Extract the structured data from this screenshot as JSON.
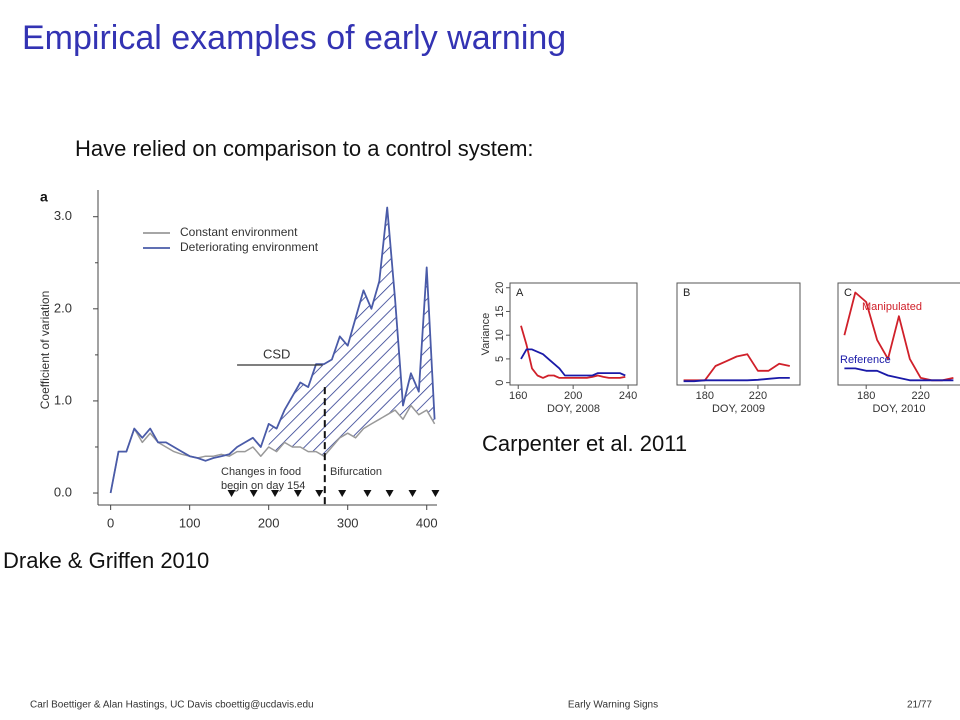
{
  "title": "Empirical examples of early warning",
  "body": "Have relied on comparison to a control system:",
  "figures": [
    {
      "caption": "Drake & Griffen 2010",
      "chart_data": {
        "type": "line",
        "panel_label": "a",
        "ylabel": "Coefficient of variation",
        "xlim": [
          -16,
          413
        ],
        "ylim": [
          -0.13,
          3.29
        ],
        "xticks": [
          0,
          100,
          200,
          300,
          400
        ],
        "yticks": [
          {
            "value": 0,
            "label": "0.0"
          },
          {
            "value": 1,
            "label": "1.0"
          },
          {
            "value": 2,
            "label": "2.0"
          },
          {
            "value": 3,
            "label": "3.0"
          }
        ],
        "x": [
          0,
          10,
          20,
          30,
          40,
          50,
          60,
          70,
          80,
          90,
          100,
          110,
          120,
          130,
          140,
          150,
          160,
          170,
          180,
          190,
          200,
          210,
          220,
          230,
          240,
          250,
          260,
          270,
          280,
          290,
          300,
          310,
          320,
          330,
          340,
          350,
          360,
          370,
          380,
          390,
          400,
          410
        ],
        "series": [
          {
            "name": "Constant environment",
            "color": "#999999",
            "values": [
              0.0,
              0.45,
              0.45,
              0.7,
              0.55,
              0.65,
              0.55,
              0.5,
              0.45,
              0.42,
              0.4,
              0.38,
              0.4,
              0.4,
              0.42,
              0.4,
              0.45,
              0.45,
              0.5,
              0.4,
              0.5,
              0.45,
              0.55,
              0.5,
              0.5,
              0.45,
              0.45,
              0.4,
              0.5,
              0.6,
              0.65,
              0.6,
              0.7,
              0.75,
              0.8,
              0.85,
              0.9,
              0.8,
              0.95,
              0.85,
              0.9,
              0.75
            ]
          },
          {
            "name": "Deteriorating environment",
            "color": "#4a5ba8",
            "values": [
              0.0,
              0.45,
              0.45,
              0.7,
              0.6,
              0.7,
              0.55,
              0.55,
              0.5,
              0.45,
              0.4,
              0.38,
              0.35,
              0.38,
              0.4,
              0.42,
              0.5,
              0.55,
              0.6,
              0.5,
              0.75,
              0.7,
              0.9,
              1.05,
              1.2,
              1.15,
              1.4,
              1.4,
              1.45,
              1.7,
              1.6,
              1.9,
              2.2,
              2.0,
              2.3,
              3.1,
              2.1,
              0.95,
              1.3,
              1.1,
              2.45,
              0.8
            ]
          }
        ],
        "annotations": [
          "CSD",
          "Changes in food",
          "begin on day 154",
          "Bifurcation"
        ],
        "sample_days": [
          153,
          181,
          208,
          237,
          264,
          293,
          325,
          353,
          382,
          411
        ]
      }
    },
    {
      "caption": "Carpenter et al. 2011",
      "chart_data": [
        {
          "type": "line",
          "panel_label": "A",
          "xlabel": "DOY, 2008",
          "ylabel": "Variance",
          "xlim": [
            154,
            246.5
          ],
          "ylim": [
            -0.5,
            21
          ],
          "xticks": [
            160,
            200,
            240
          ],
          "yticks": [
            0,
            5,
            10,
            15,
            20
          ],
          "x": [
            162,
            166,
            170,
            174,
            178,
            182,
            186,
            190,
            194,
            198,
            202,
            206,
            210,
            214,
            218,
            222,
            226,
            230,
            234,
            238
          ],
          "series": [
            {
              "name": "Manipulated",
              "color": "#d0202a",
              "values": [
                12,
                8,
                3,
                1.5,
                1,
                1.5,
                1.5,
                1,
                1,
                1,
                1,
                1,
                1,
                1.2,
                1.5,
                1.2,
                1,
                1,
                1,
                1.2
              ]
            },
            {
              "name": "Reference",
              "color": "#1a1aa8",
              "values": [
                5,
                7,
                7,
                6.5,
                6,
                5,
                4,
                3,
                1.5,
                1.5,
                1.5,
                1.5,
                1.5,
                1.5,
                2,
                2,
                2,
                2,
                2,
                1.5
              ]
            }
          ]
        },
        {
          "type": "line",
          "panel_label": "B",
          "xlabel": "DOY, 2009",
          "xlim": [
            159,
            251.7
          ],
          "ylim": [
            -0.5,
            21
          ],
          "xticks": [
            180,
            220
          ],
          "x": [
            164,
            172,
            180,
            188,
            196,
            204,
            212,
            220,
            228,
            236,
            244
          ],
          "series": [
            {
              "name": "Manipulated",
              "color": "#d0202a",
              "values": [
                0.5,
                0.5,
                0.5,
                3.5,
                4.5,
                5.5,
                6,
                2.5,
                2.5,
                4,
                3.5
              ]
            },
            {
              "name": "Reference",
              "color": "#1a1aa8",
              "values": [
                0.3,
                0.3,
                0.5,
                0.5,
                0.5,
                0.5,
                0.5,
                0.6,
                0.8,
                1,
                1
              ]
            }
          ]
        },
        {
          "type": "line",
          "panel_label": "C",
          "xlabel": "DOY, 2010",
          "legend": "inline",
          "xlim": [
            159.3,
            249.6
          ],
          "ylim": [
            -0.5,
            21
          ],
          "xticks": [
            180,
            220
          ],
          "x": [
            164,
            172,
            180,
            188,
            196,
            204,
            212,
            220,
            228,
            236,
            244
          ],
          "series": [
            {
              "name": "Manipulated",
              "color": "#d0202a",
              "values": [
                10,
                19,
                17,
                9,
                5,
                14,
                5,
                1,
                0.5,
                0.5,
                1
              ]
            },
            {
              "name": "Reference",
              "color": "#1a1aa8",
              "values": [
                3,
                3,
                2.5,
                2.5,
                1.5,
                1,
                0.5,
                0.5,
                0.5,
                0.5,
                0.5
              ]
            }
          ]
        }
      ]
    }
  ],
  "footer": {
    "left": "Carl Boettiger & Alan Hastings, UC Davis cboettig@ucdavis.edu",
    "center": "Early Warning Signs",
    "right": "21/77"
  }
}
